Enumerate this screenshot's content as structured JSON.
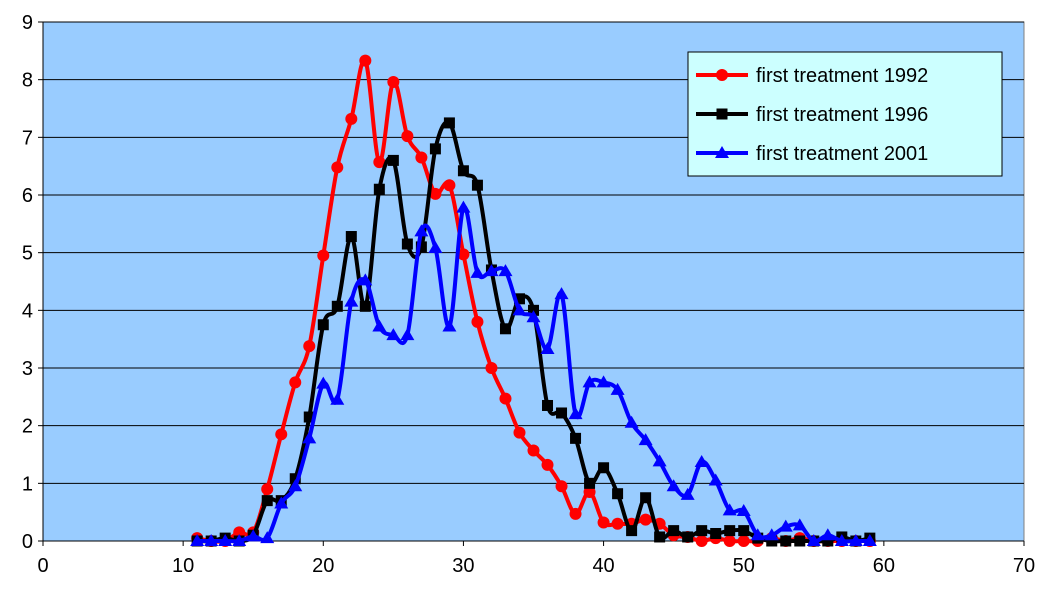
{
  "chart_data": {
    "type": "line",
    "title": "",
    "xlabel": "",
    "ylabel": "",
    "xlim": [
      0,
      70
    ],
    "ylim": [
      0,
      9
    ],
    "xticks": [
      0,
      10,
      20,
      30,
      40,
      50,
      60,
      70
    ],
    "yticks": [
      0,
      1,
      2,
      3,
      4,
      5,
      6,
      7,
      8,
      9
    ],
    "grid": "horizontal",
    "plot_background": "#99CCFF",
    "legend_position": "top-right",
    "x": [
      11,
      12,
      13,
      14,
      15,
      16,
      17,
      18,
      19,
      20,
      21,
      22,
      23,
      24,
      25,
      26,
      27,
      28,
      29,
      30,
      31,
      32,
      33,
      34,
      35,
      36,
      37,
      38,
      39,
      40,
      41,
      42,
      43,
      44,
      45,
      46,
      47,
      48,
      49,
      50,
      51,
      52,
      53,
      54,
      55,
      56,
      57,
      58,
      59
    ],
    "series": [
      {
        "name": "first treatment 1992",
        "color": "#FF0000",
        "marker": "circle",
        "values": [
          0.05,
          0.0,
          0.0,
          0.15,
          0.15,
          0.9,
          1.85,
          2.75,
          3.38,
          4.95,
          6.48,
          7.32,
          8.33,
          6.57,
          7.96,
          7.02,
          6.65,
          6.02,
          6.17,
          4.97,
          3.8,
          3.0,
          2.47,
          1.88,
          1.57,
          1.32,
          0.95,
          0.47,
          0.85,
          0.32,
          0.3,
          0.3,
          0.37,
          0.3,
          0.1,
          0.07,
          0.0,
          0.05,
          0.0,
          0.0,
          0.0,
          0.05,
          0.0,
          0.05,
          0.0,
          0.0,
          0.0,
          0.0,
          0.0
        ]
      },
      {
        "name": "first treatment 1996",
        "color": "#000000",
        "marker": "square",
        "values": [
          0.0,
          0.0,
          0.05,
          0.0,
          0.1,
          0.7,
          0.7,
          1.08,
          2.15,
          3.75,
          4.07,
          5.28,
          4.07,
          6.1,
          6.6,
          5.15,
          5.1,
          6.8,
          7.25,
          6.42,
          6.17,
          4.7,
          3.68,
          4.2,
          4.0,
          2.35,
          2.22,
          1.78,
          1.0,
          1.27,
          0.82,
          0.18,
          0.75,
          0.07,
          0.18,
          0.07,
          0.18,
          0.13,
          0.18,
          0.18,
          0.05,
          0.0,
          0.0,
          0.0,
          0.0,
          0.0,
          0.07,
          0.0,
          0.05
        ]
      },
      {
        "name": "first treatment 2001",
        "color": "#0000FF",
        "marker": "triangle",
        "values": [
          0.0,
          0.0,
          0.0,
          0.0,
          0.08,
          0.05,
          0.65,
          0.95,
          1.78,
          2.73,
          2.45,
          4.15,
          4.52,
          3.72,
          3.57,
          3.57,
          5.37,
          5.08,
          3.72,
          5.78,
          4.65,
          4.68,
          4.68,
          4.0,
          3.88,
          3.33,
          4.28,
          2.2,
          2.75,
          2.75,
          2.62,
          2.05,
          1.75,
          1.38,
          0.95,
          0.8,
          1.37,
          1.05,
          0.53,
          0.52,
          0.1,
          0.1,
          0.25,
          0.27,
          0.0,
          0.1,
          0.0,
          0.0,
          0.0
        ]
      }
    ]
  }
}
